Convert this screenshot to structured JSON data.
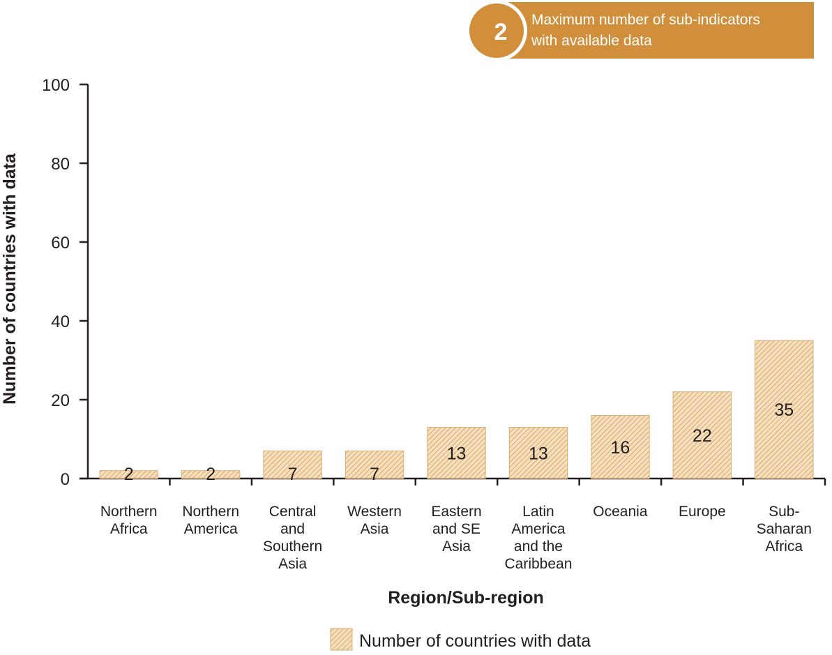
{
  "badge": {
    "number": "2",
    "line1": "Maximum number of sub-indicators",
    "line2": "with available data",
    "color": "#d18f3c"
  },
  "colors": {
    "bar_fill": "#f5dfbe",
    "bar_stroke": "#d7ad72",
    "hatch": "#d9a866",
    "axis": "#231f20"
  },
  "chart_data": {
    "type": "bar",
    "categories": [
      [
        "Northern",
        "Africa"
      ],
      [
        "Northern",
        "America"
      ],
      [
        "Central",
        "and",
        "Southern",
        "Asia"
      ],
      [
        "Western",
        "Asia"
      ],
      [
        "Eastern",
        "and SE",
        "Asia"
      ],
      [
        "Latin",
        "America",
        "and the",
        "Caribbean"
      ],
      [
        "Oceania"
      ],
      [
        "Europe"
      ],
      [
        "Sub-",
        "Saharan",
        "Africa"
      ]
    ],
    "values": [
      2,
      2,
      7,
      7,
      13,
      13,
      16,
      22,
      35
    ],
    "ylim": [
      0,
      100
    ],
    "yticks": [
      0,
      20,
      40,
      60,
      80,
      100
    ],
    "xlabel": "Region/Sub-region",
    "ylabel": "Number of countries with data",
    "legend": [
      "Number of countries with data"
    ],
    "legend_position": "bottom-center",
    "pattern": "diagonal-hatch",
    "grid": false
  }
}
